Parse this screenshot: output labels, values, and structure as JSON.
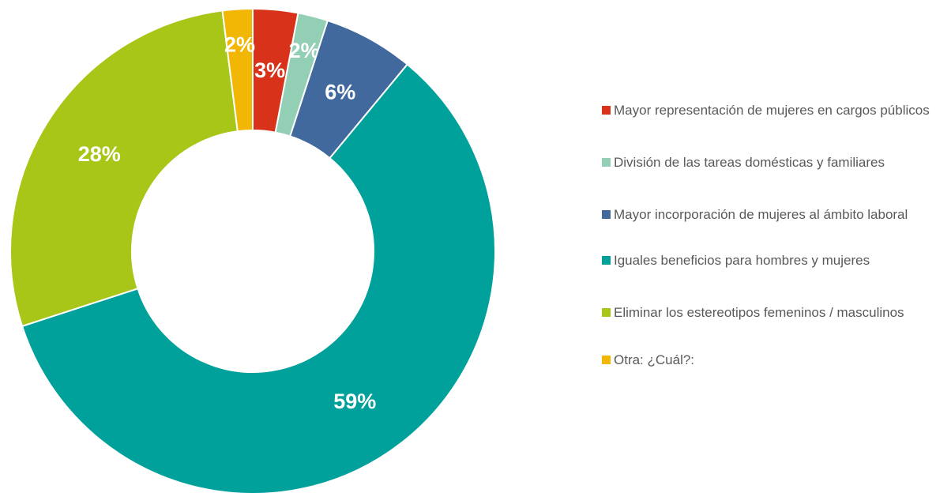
{
  "chart_data": {
    "type": "donut",
    "categories": [
      "Mayor representación de mujeres en cargos públicos",
      "División de las tareas domésticas y familiares",
      "Mayor incorporación de mujeres al ámbito laboral",
      "Iguales beneficios para hombres y mujeres",
      "Eliminar los estereotipos femeninos / masculinos",
      "Otra: ¿Cuál?:"
    ],
    "values": [
      3,
      2,
      6,
      59,
      28,
      2
    ],
    "value_labels": [
      "3%",
      "2%",
      "6%",
      "59%",
      "28%",
      "2%"
    ],
    "colors": [
      "#d9321a",
      "#93cfb5",
      "#41699d",
      "#00a19a",
      "#a8c617",
      "#f2b705"
    ],
    "legend": "right"
  }
}
